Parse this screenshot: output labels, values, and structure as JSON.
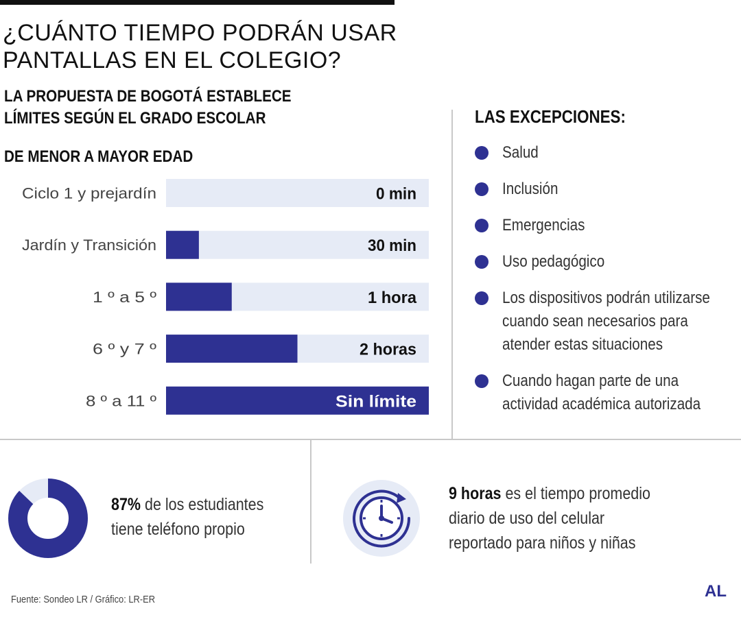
{
  "title_line1": "¿CUÁNTO TIEMPO PODRÁN USAR",
  "title_line2": "PANTALLAS EN EL COLEGIO?",
  "subtitle_line1": "LA PROPUESTA DE BOGOTÁ ESTABLECE",
  "subtitle_line2": "LÍMITES SEGÚN EL GRADO ESCOLAR",
  "order_label": "DE MENOR A MAYOR EDAD",
  "colors": {
    "bar": "#2e3192",
    "track": "#e6ebf6",
    "accent": "#2e3192"
  },
  "chart_data": {
    "type": "bar",
    "orientation": "horizontal",
    "categories": [
      "Ciclo 1 y prejardín",
      "Jardín y Transición",
      "1 º a 5 º",
      "6 º y 7 º",
      "8 º a 11 º"
    ],
    "values": [
      0,
      0.5,
      1,
      2,
      4
    ],
    "value_labels": [
      "0 min",
      "30 min",
      "1 hora",
      "2 horas",
      "Sin límite"
    ],
    "value_unit": "hours",
    "xlim": [
      0,
      4
    ],
    "grid": false,
    "legend": "none"
  },
  "exceptions": {
    "title": "LAS EXCEPCIONES:",
    "items": [
      [
        "Salud"
      ],
      [
        "Inclusión"
      ],
      [
        "Emergencias"
      ],
      [
        "Uso pedagógico"
      ],
      [
        "Los dispositivos podrán utilizarse",
        "cuando sean necesarios para",
        "atender estas situaciones"
      ],
      [
        "Cuando hagan parte de una",
        "actividad académica autorizada"
      ]
    ]
  },
  "stat1": {
    "percent": 87,
    "value": "87%",
    "line1_rest": " de los estudiantes",
    "line2": "tiene teléfono propio"
  },
  "stat2": {
    "value": "9 horas",
    "line1_rest": " es el tiempo promedio",
    "line2": "diario de uso del celular",
    "line3": "reportado para niños y niñas"
  },
  "source": "Fuente: Sondeo LR / Gráfico: LR-ER",
  "brand": "AL"
}
